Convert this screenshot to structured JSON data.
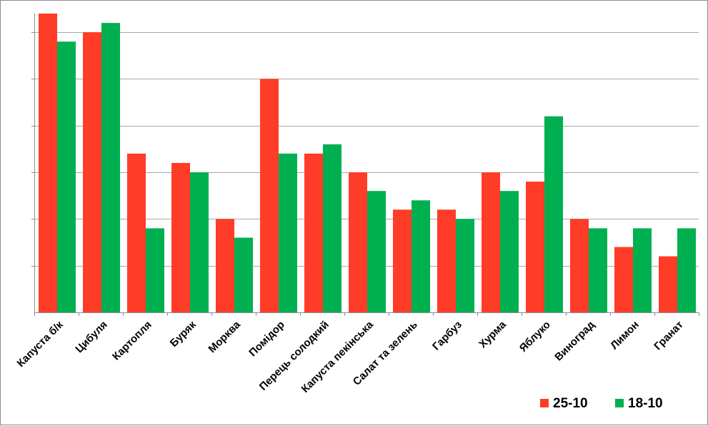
{
  "chart_data": {
    "type": "bar",
    "categories": [
      "Капуста б/к",
      "Цибуля",
      "Картопля",
      "Буряк",
      "Морква",
      "Помідор",
      "Перець солодкий",
      "Капуста пекінська",
      "Салат та зелень",
      "Гарбуз",
      "Хурма",
      "Яблуко",
      "Виноград",
      "Лимон",
      "Гранат"
    ],
    "series": [
      {
        "name": "25-10",
        "color": "#ff3c28",
        "values": [
          32,
          30,
          17,
          16,
          10,
          25,
          17,
          15,
          11,
          11,
          15,
          14,
          10,
          7,
          6
        ]
      },
      {
        "name": "18-10",
        "color": "#00b050",
        "values": [
          29,
          31,
          9,
          15,
          8,
          17,
          18,
          13,
          12,
          10,
          13,
          21,
          9,
          9,
          9
        ]
      }
    ],
    "ylim": [
      0,
      32
    ],
    "y_gridlines": [
      0,
      5,
      10,
      15,
      20,
      25,
      30
    ],
    "y_tick_labels": false,
    "grid": true,
    "legend": {
      "position": "bottom-right",
      "entries": [
        "25-10",
        "18-10"
      ]
    }
  }
}
